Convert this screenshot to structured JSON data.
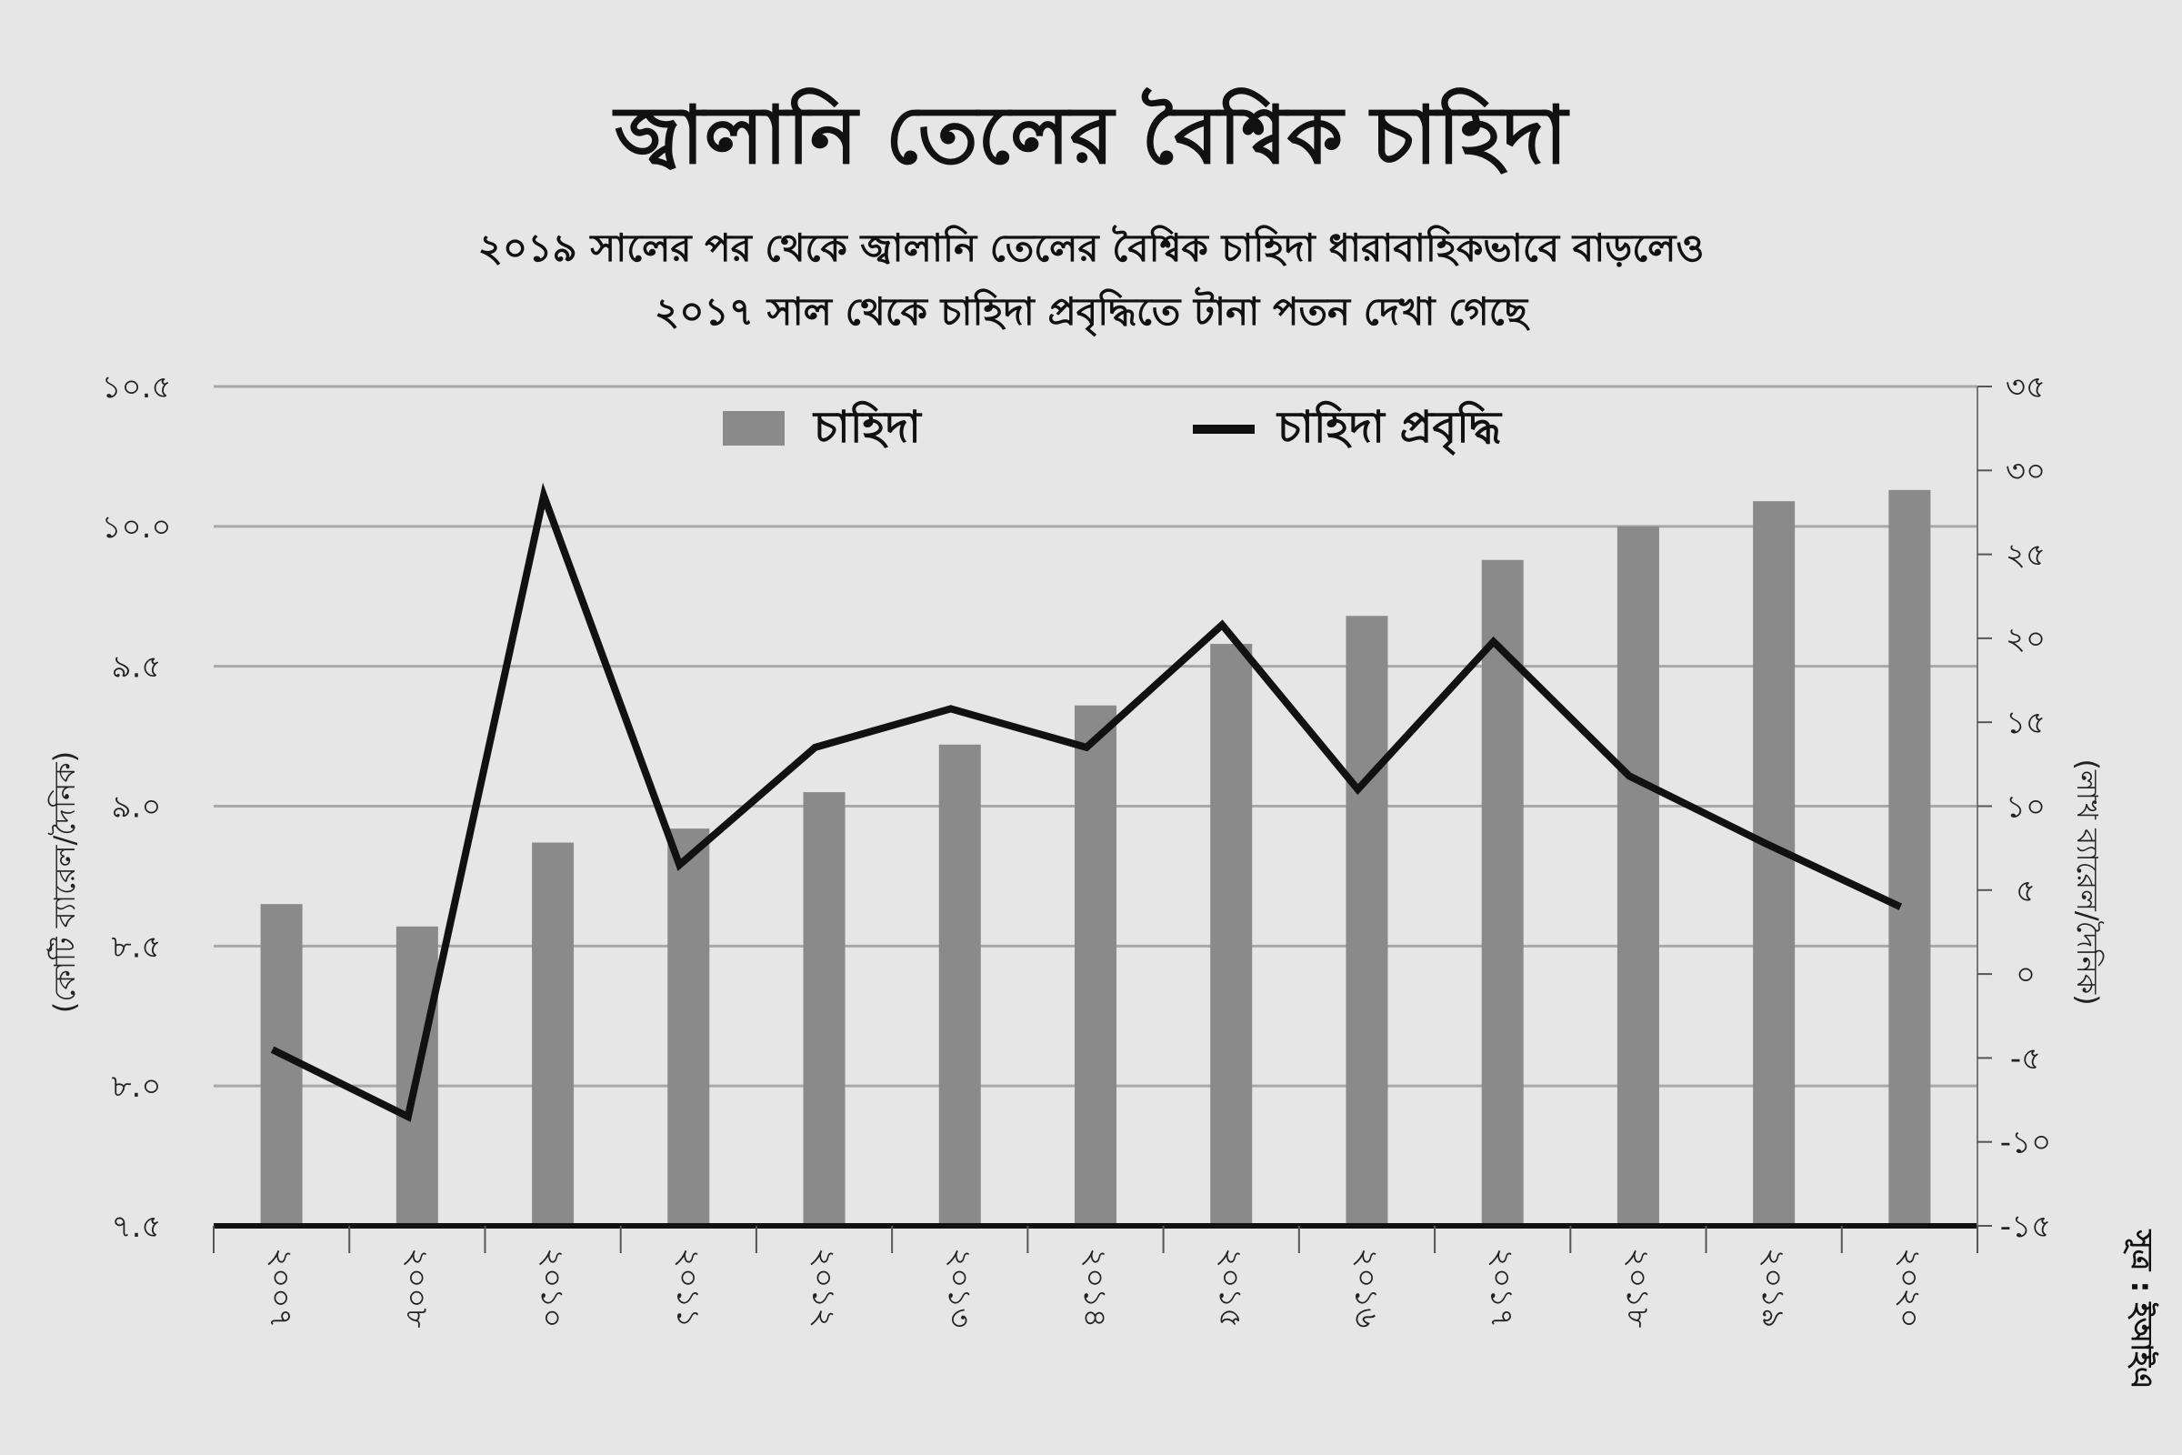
{
  "title": "জ্বালানি তেলের বৈশ্বিক চাহিদা",
  "subtitle_lines": [
    "২০১৯ সালের পর থেকে জ্বালানি তেলের বৈশ্বিক চাহিদা ধারাবাহিকভাবে বাড়লেও",
    "২০১৭ সাল থেকে চাহিদা প্রবৃদ্ধিতে টানা পতন দেখা গেছে"
  ],
  "source": "সূত্র : ইআইএ",
  "colors": {
    "bar": "#8a8a8a",
    "line": "#111111",
    "grid": "#a8a8a8",
    "background": "#e6e6e6"
  },
  "chart_data": {
    "type": "bar",
    "categories": [
      "২০০৭",
      "২০০৮",
      "২০১০",
      "২০১১",
      "২০১২",
      "২০১৩",
      "২০১৪",
      "২০১৫",
      "২০১৬",
      "২০১৭",
      "২০১৮",
      "২০১৯",
      "২০২০"
    ],
    "series": [
      {
        "name": "চাহিদা",
        "type": "bar",
        "axis": "left",
        "values": [
          8.65,
          8.57,
          8.87,
          8.92,
          9.05,
          9.22,
          9.36,
          9.58,
          9.68,
          9.88,
          10.0,
          10.09,
          10.13
        ]
      },
      {
        "name": "চাহিদা প্রবৃদ্ধি",
        "type": "line",
        "axis": "right",
        "values": [
          -4.5,
          -8.5,
          28.5,
          6.5,
          13.5,
          15.8,
          13.5,
          20.8,
          11.0,
          19.8,
          11.8,
          7.8,
          4.0
        ]
      }
    ],
    "y_left": {
      "label": "(কোটি ব্যারেল/দৈনিক)",
      "range": [
        7.5,
        10.5
      ],
      "ticks": [
        7.5,
        8.0,
        8.5,
        9.0,
        9.5,
        10.0,
        10.5
      ],
      "tick_labels": [
        "৭.৫",
        "৮.০",
        "৮.৫",
        "৯.০",
        "৯.৫",
        "১০.০",
        "১০.৫"
      ]
    },
    "y_right": {
      "label": "(লাখ ব্যারেল/দৈনিক)",
      "range": [
        -15,
        35
      ],
      "ticks": [
        -15,
        -10,
        -5,
        0,
        5,
        10,
        15,
        20,
        25,
        30,
        35
      ],
      "tick_labels": [
        "-১৫",
        "-১০",
        "-৫",
        "০",
        "৫",
        "১০",
        "১৫",
        "২০",
        "২৫",
        "৩০",
        "৩৫"
      ]
    },
    "grid": true,
    "legend": "top-center"
  }
}
